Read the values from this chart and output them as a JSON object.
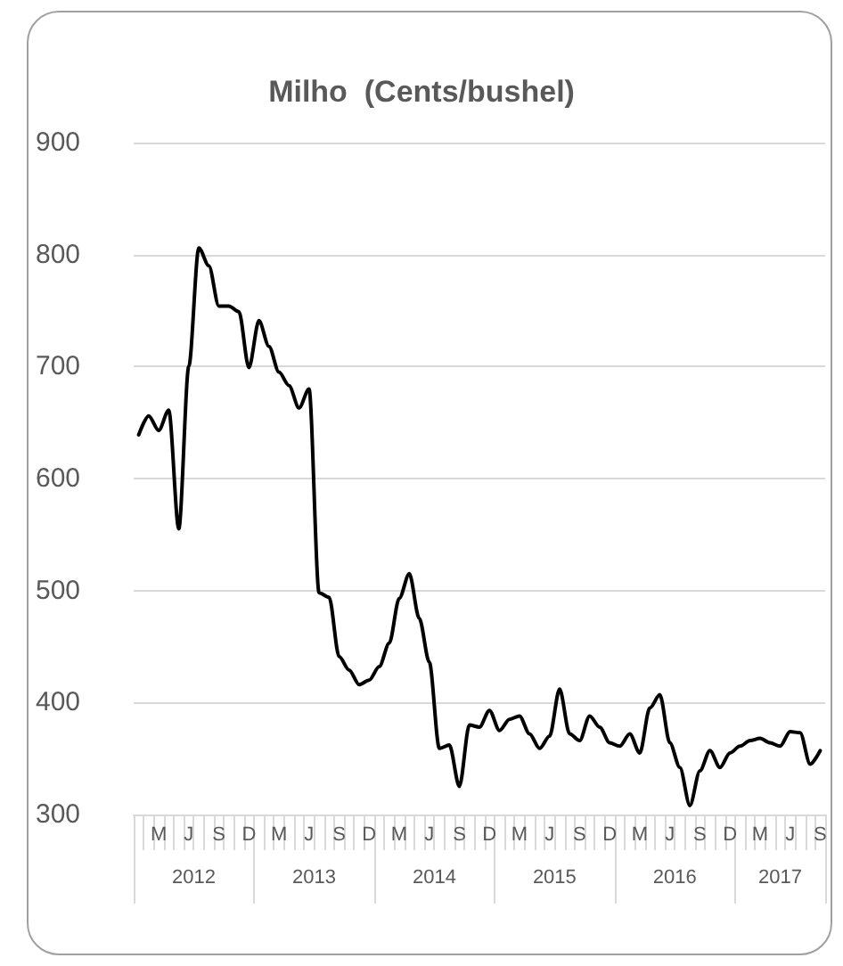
{
  "chart_data": {
    "type": "line",
    "title": "Milho  (Cents/bushel)",
    "categories": [
      null,
      null,
      "M",
      null,
      null,
      "J",
      null,
      null,
      "S",
      null,
      null,
      "D",
      null,
      null,
      "M",
      null,
      null,
      "J",
      null,
      null,
      "S",
      null,
      null,
      "D",
      null,
      null,
      "M",
      null,
      null,
      "J",
      null,
      null,
      "S",
      null,
      null,
      "D",
      null,
      null,
      "M",
      null,
      null,
      "J",
      null,
      null,
      "S",
      null,
      null,
      "D",
      null,
      null,
      "M",
      null,
      null,
      "J",
      null,
      null,
      "S",
      null,
      null,
      "D",
      null,
      null,
      "M",
      null,
      null,
      "J",
      null,
      null,
      "S"
    ],
    "series": [
      {
        "color": "#000000",
        "values": [
          639,
          656,
          643,
          661,
          555,
          700,
          806,
          790,
          754,
          754,
          749,
          699,
          741,
          718,
          695,
          683,
          663,
          680,
          498,
          494,
          441,
          429,
          416,
          420,
          432,
          453,
          493,
          515,
          475,
          436,
          359,
          362,
          325,
          380,
          378,
          393,
          375,
          385,
          388,
          372,
          359,
          370,
          412,
          372,
          366,
          388,
          378,
          364,
          361,
          372,
          355,
          395,
          407,
          364,
          342,
          308,
          339,
          357,
          342,
          355,
          361,
          366,
          368,
          364,
          361,
          374,
          373,
          345,
          357
        ]
      }
    ],
    "ylim": [
      300,
      900
    ],
    "yticks": [
      300,
      400,
      500,
      600,
      700,
      800,
      900
    ],
    "grid": "y",
    "marker": "none",
    "line_style": "solid",
    "annotations": [
      "2012",
      "2013",
      "2014",
      "2015",
      "2016",
      "2017"
    ]
  }
}
